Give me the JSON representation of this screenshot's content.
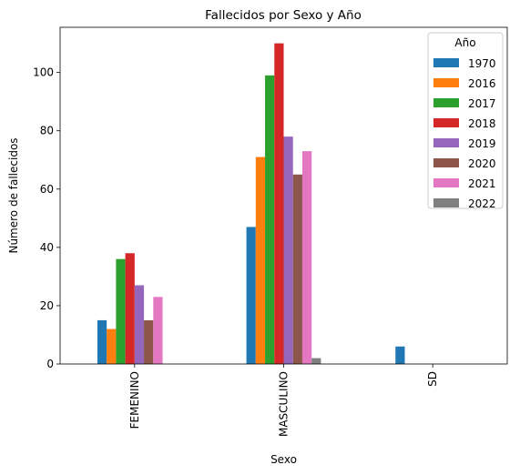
{
  "chart_data": {
    "type": "bar",
    "title": "Fallecidos por Sexo y Año",
    "xlabel": "Sexo",
    "ylabel": "Número de fallecidos",
    "categories": [
      "FEMENINO",
      "MASCULINO",
      "SD"
    ],
    "ylim": [
      0,
      115.5
    ],
    "yticks": [
      0,
      20,
      40,
      60,
      80,
      100
    ],
    "legend_title": "Año",
    "legend_position": "top-right",
    "grid": false,
    "series": [
      {
        "name": "1970",
        "color": "#1f77b4",
        "values": [
          15,
          47,
          6
        ]
      },
      {
        "name": "2016",
        "color": "#ff7f0e",
        "values": [
          12,
          71,
          0
        ]
      },
      {
        "name": "2017",
        "color": "#2ca02c",
        "values": [
          36,
          99,
          0
        ]
      },
      {
        "name": "2018",
        "color": "#d62728",
        "values": [
          38,
          110,
          0
        ]
      },
      {
        "name": "2019",
        "color": "#9467bd",
        "values": [
          27,
          78,
          0
        ]
      },
      {
        "name": "2020",
        "color": "#8c564b",
        "values": [
          15,
          65,
          0
        ]
      },
      {
        "name": "2021",
        "color": "#e377c2",
        "values": [
          23,
          73,
          0
        ]
      },
      {
        "name": "2022",
        "color": "#7f7f7f",
        "values": [
          0,
          2,
          0
        ]
      }
    ]
  }
}
